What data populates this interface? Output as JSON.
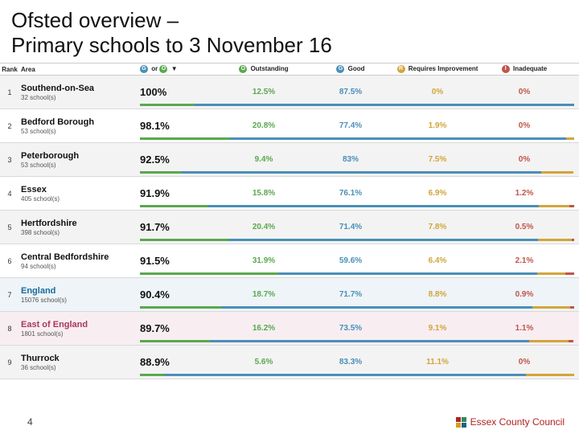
{
  "title_line1": "Ofsted overview –",
  "title_line2": "Primary schools to 3 November 16",
  "columns": {
    "rank": "Rank",
    "area": "Area",
    "combo_suffix": "or",
    "outstanding": "Outstanding",
    "good": "Good",
    "requires": "Requires Improvement",
    "inadequate": "Inadequate"
  },
  "badges": {
    "good": {
      "letter": "G",
      "bg": "#4a8fb8"
    },
    "outstanding": {
      "letter": "O",
      "bg": "#5aa84f"
    },
    "requires": {
      "letter": "R",
      "bg": "#d2a53b"
    },
    "inadequate": {
      "letter": "I",
      "bg": "#c1554a"
    }
  },
  "rows": [
    {
      "rank": "1",
      "name": "Southend-on-Sea",
      "sub": "32 school(s)",
      "combo": "100%",
      "out": "12.5%",
      "good": "87.5%",
      "ri": "0%",
      "in": "0%",
      "bar": [
        12.5,
        87.5,
        0,
        0
      ],
      "stripe": true
    },
    {
      "rank": "2",
      "name": "Bedford Borough",
      "sub": "53 school(s)",
      "combo": "98.1%",
      "out": "20.8%",
      "good": "77.4%",
      "ri": "1.9%",
      "in": "0%",
      "bar": [
        20.8,
        77.4,
        1.9,
        0
      ]
    },
    {
      "rank": "3",
      "name": "Peterborough",
      "sub": "53 school(s)",
      "combo": "92.5%",
      "out": "9.4%",
      "good": "83%",
      "ri": "7.5%",
      "in": "0%",
      "bar": [
        9.4,
        83,
        7.5,
        0
      ],
      "stripe": true
    },
    {
      "rank": "4",
      "name": "Essex",
      "sub": "405 school(s)",
      "combo": "91.9%",
      "out": "15.8%",
      "good": "76.1%",
      "ri": "6.9%",
      "in": "1.2%",
      "bar": [
        15.8,
        76.1,
        6.9,
        1.2
      ]
    },
    {
      "rank": "5",
      "name": "Hertfordshire",
      "sub": "398 school(s)",
      "combo": "91.7%",
      "out": "20.4%",
      "good": "71.4%",
      "ri": "7.8%",
      "in": "0.5%",
      "bar": [
        20.4,
        71.4,
        7.8,
        0.5
      ],
      "stripe": true
    },
    {
      "rank": "6",
      "name": "Central Bedfordshire",
      "sub": "94 school(s)",
      "combo": "91.5%",
      "out": "31.9%",
      "good": "59.6%",
      "ri": "6.4%",
      "in": "2.1%",
      "bar": [
        31.9,
        59.6,
        6.4,
        2.1
      ]
    },
    {
      "rank": "7",
      "name": "England",
      "sub": "15076 school(s)",
      "combo": "90.4%",
      "out": "18.7%",
      "good": "71.7%",
      "ri": "8.8%",
      "in": "0.9%",
      "bar": [
        18.7,
        71.7,
        8.8,
        0.9
      ],
      "special": "england"
    },
    {
      "rank": "8",
      "name": "East of England",
      "sub": "1801 school(s)",
      "combo": "89.7%",
      "out": "16.2%",
      "good": "73.5%",
      "ri": "9.1%",
      "in": "1.1%",
      "bar": [
        16.2,
        73.5,
        9.1,
        1.1
      ],
      "special": "east"
    },
    {
      "rank": "9",
      "name": "Thurrock",
      "sub": "36 school(s)",
      "combo": "88.9%",
      "out": "5.6%",
      "good": "83.3%",
      "ri": "11.1%",
      "in": "0%",
      "bar": [
        5.6,
        83.3,
        11.1,
        0
      ],
      "stripe": true
    }
  ],
  "footer": {
    "page": "4",
    "logo_text": "Essex County Council",
    "logo_colors": [
      "#b22222",
      "#2e8b57",
      "#d4a017",
      "#1e5f8a"
    ]
  }
}
